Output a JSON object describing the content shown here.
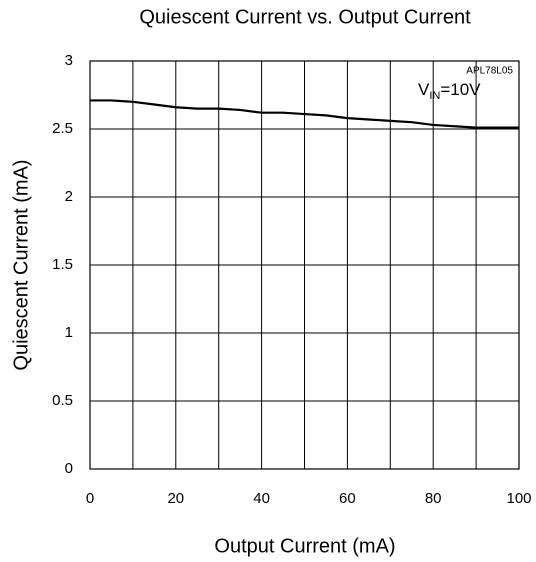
{
  "chart_data": {
    "type": "line",
    "title": "Quiescent Current vs. Output Current",
    "xlabel": "Output Current (mA)",
    "ylabel": "Quiescent Current (mA)",
    "annotation": "APL78L05",
    "condition": {
      "main": "V",
      "sub": "IN",
      "rest": "=10V"
    },
    "x": [
      0,
      5,
      10,
      15,
      20,
      25,
      30,
      35,
      40,
      45,
      50,
      55,
      60,
      65,
      70,
      75,
      80,
      85,
      90,
      95,
      100
    ],
    "series": [
      {
        "name": null,
        "color": "#000000",
        "values": [
          2.71,
          2.71,
          2.7,
          2.68,
          2.66,
          2.65,
          2.65,
          2.64,
          2.62,
          2.62,
          2.61,
          2.6,
          2.58,
          2.57,
          2.56,
          2.55,
          2.53,
          2.52,
          2.51,
          2.51,
          2.51
        ]
      }
    ],
    "xlim": [
      0,
      100
    ],
    "xticks": [
      0,
      20,
      40,
      60,
      80,
      100
    ],
    "xminor_ticks": [
      10,
      30,
      50,
      70,
      90
    ],
    "ylim": [
      0,
      3
    ],
    "yticks": [
      0,
      0.5,
      1,
      1.5,
      2,
      2.5,
      3
    ],
    "grid": true
  }
}
